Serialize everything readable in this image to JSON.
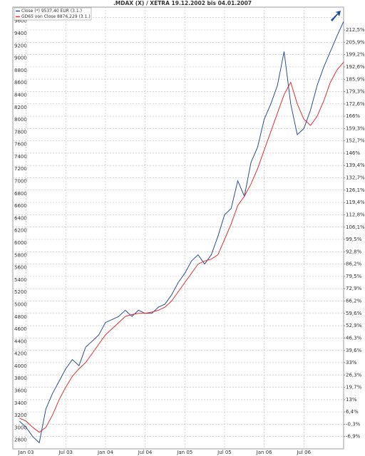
{
  "chart_data": {
    "type": "line",
    "title": ".MDAX (X) / XETRA 19.12.2002 bis 04.01.2007",
    "x": [
      "2002-12",
      "2003-01",
      "2003-02",
      "2003-03",
      "2003-04",
      "2003-05",
      "2003-06",
      "2003-07",
      "2003-08",
      "2003-09",
      "2003-10",
      "2003-11",
      "2003-12",
      "2004-01",
      "2004-02",
      "2004-03",
      "2004-04",
      "2004-05",
      "2004-06",
      "2004-07",
      "2004-08",
      "2004-09",
      "2004-10",
      "2004-11",
      "2004-12",
      "2005-01",
      "2005-02",
      "2005-03",
      "2005-04",
      "2005-05",
      "2005-06",
      "2005-07",
      "2005-08",
      "2005-09",
      "2005-10",
      "2005-11",
      "2005-12",
      "2006-01",
      "2006-02",
      "2006-03",
      "2006-04",
      "2006-05",
      "2006-06",
      "2006-07",
      "2006-08",
      "2006-09",
      "2006-10",
      "2006-11",
      "2006-12",
      "2007-01"
    ],
    "series": [
      {
        "name": "Close (*) 9537,40 EUR (3.1.)",
        "color": "#2a4f8f",
        "values": [
          3050,
          2950,
          2800,
          2700,
          3250,
          3500,
          3700,
          3900,
          4050,
          3950,
          4250,
          4350,
          4450,
          4650,
          4700,
          4750,
          4850,
          4750,
          4850,
          4800,
          4800,
          4900,
          4950,
          5100,
          5300,
          5450,
          5650,
          5750,
          5600,
          5750,
          6050,
          6400,
          6500,
          6950,
          6700,
          7250,
          7500,
          7950,
          8200,
          8500,
          9050,
          8200,
          7700,
          7800,
          8100,
          8500,
          8800,
          9050,
          9300,
          9537.4
        ]
      },
      {
        "name": "GD65 von Close 8876,229 (3.1.)",
        "color": "#e03030",
        "values": [
          3100,
          3050,
          2950,
          2870,
          2950,
          3150,
          3400,
          3600,
          3780,
          3900,
          4000,
          4150,
          4300,
          4450,
          4550,
          4650,
          4750,
          4780,
          4800,
          4800,
          4820,
          4850,
          4900,
          5000,
          5150,
          5300,
          5450,
          5600,
          5650,
          5680,
          5750,
          6000,
          6250,
          6550,
          6700,
          6900,
          7150,
          7450,
          7750,
          8050,
          8350,
          8550,
          8200,
          7950,
          7850,
          8000,
          8250,
          8550,
          8750,
          8876.229
        ]
      }
    ],
    "xlim": [
      "2002-11",
      "2007-01"
    ],
    "xticks": [
      {
        "value": "2003-01",
        "label": "Jan 03"
      },
      {
        "value": "2003-07",
        "label": "Jul 03"
      },
      {
        "value": "2004-01",
        "label": "Jan 04"
      },
      {
        "value": "2004-07",
        "label": "Jul 04"
      },
      {
        "value": "2005-01",
        "label": "Jan 05"
      },
      {
        "value": "2005-07",
        "label": "Jul 05"
      },
      {
        "value": "2006-01",
        "label": "Jan 06"
      },
      {
        "value": "2006-07",
        "label": "Jul 06"
      }
    ],
    "ylim": [
      2600,
      9770
    ],
    "yticks": [
      2800,
      3000,
      3200,
      3400,
      3600,
      3800,
      4000,
      4200,
      4400,
      4600,
      4800,
      5000,
      5200,
      5400,
      5600,
      5800,
      6000,
      6200,
      6400,
      6600,
      6800,
      7000,
      7200,
      7400,
      7600,
      7800,
      8000,
      8200,
      8400,
      8600,
      8800,
      9000,
      9200,
      9400,
      9600
    ],
    "y2lim": [
      -13.55,
      224.85
    ],
    "y2ticks": [
      {
        "value": 212.5,
        "label": "212,5%"
      },
      {
        "value": 205.9,
        "label": "205,9%"
      },
      {
        "value": 199.2,
        "label": "199,2%"
      },
      {
        "value": 192.6,
        "label": "192,6%"
      },
      {
        "value": 185.9,
        "label": "185,9%"
      },
      {
        "value": 179.3,
        "label": "179,3%"
      },
      {
        "value": 172.6,
        "label": "172,6%"
      },
      {
        "value": 166,
        "label": "166%"
      },
      {
        "value": 159.3,
        "label": "159,3%"
      },
      {
        "value": 152.7,
        "label": "152,7%"
      },
      {
        "value": 146,
        "label": "146%"
      },
      {
        "value": 139.4,
        "label": "139,4%"
      },
      {
        "value": 132.7,
        "label": "132,7%"
      },
      {
        "value": 126.1,
        "label": "126,1%"
      },
      {
        "value": 119.4,
        "label": "119,4%"
      },
      {
        "value": 112.8,
        "label": "112,8%"
      },
      {
        "value": 106.1,
        "label": "106,1%"
      },
      {
        "value": 99.5,
        "label": "99,5%"
      },
      {
        "value": 92.8,
        "label": "92,8%"
      },
      {
        "value": 86.2,
        "label": "86,2%"
      },
      {
        "value": 79.5,
        "label": "79,5%"
      },
      {
        "value": 72.9,
        "label": "72,9%"
      },
      {
        "value": 66.2,
        "label": "66,2%"
      },
      {
        "value": 59.6,
        "label": "59,6%"
      },
      {
        "value": 52.9,
        "label": "52,9%"
      },
      {
        "value": 46.3,
        "label": "46,3%"
      },
      {
        "value": 39.6,
        "label": "39,6%"
      },
      {
        "value": 33,
        "label": "33%"
      },
      {
        "value": 26.3,
        "label": "26,3%"
      },
      {
        "value": 19.7,
        "label": "19,7%"
      },
      {
        "value": 13,
        "label": "13%"
      },
      {
        "value": 6.4,
        "label": "6,4%"
      },
      {
        "value": -0.3,
        "label": "-0,3%"
      },
      {
        "value": -6.9,
        "label": "-6,9%"
      }
    ],
    "grid": true
  }
}
